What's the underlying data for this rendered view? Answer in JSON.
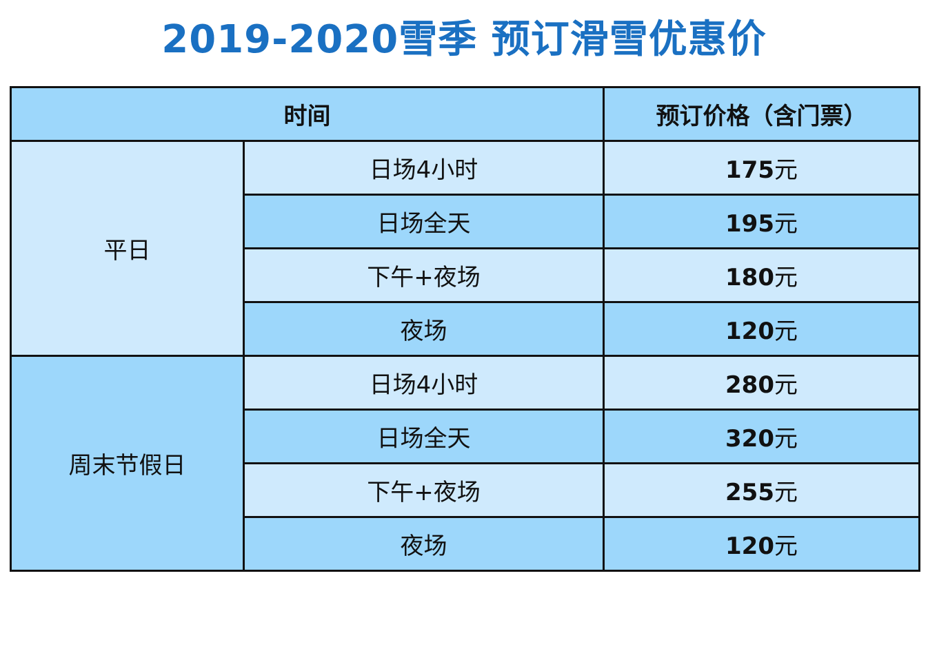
{
  "title": "2019-2020雪季 预订滑雪优惠价",
  "table": {
    "header": [
      "时间",
      "预订价格（含门票）"
    ],
    "groups": [
      {
        "label": "平日",
        "rows": [
          {
            "session": "日场4小时",
            "amount": 175,
            "unit": "元"
          },
          {
            "session": "日场全天",
            "amount": 195,
            "unit": "元"
          },
          {
            "session": "下午+夜场",
            "amount": 180,
            "unit": "元"
          },
          {
            "session": "夜场",
            "amount": 120,
            "unit": "元"
          }
        ]
      },
      {
        "label": "周末节假日",
        "rows": [
          {
            "session": "日场4小时",
            "amount": 280,
            "unit": "元"
          },
          {
            "session": "日场全天",
            "amount": 320,
            "unit": "元"
          },
          {
            "session": "下午+夜场",
            "amount": 255,
            "unit": "元"
          },
          {
            "session": "夜场",
            "amount": 120,
            "unit": "元"
          }
        ]
      }
    ]
  }
}
